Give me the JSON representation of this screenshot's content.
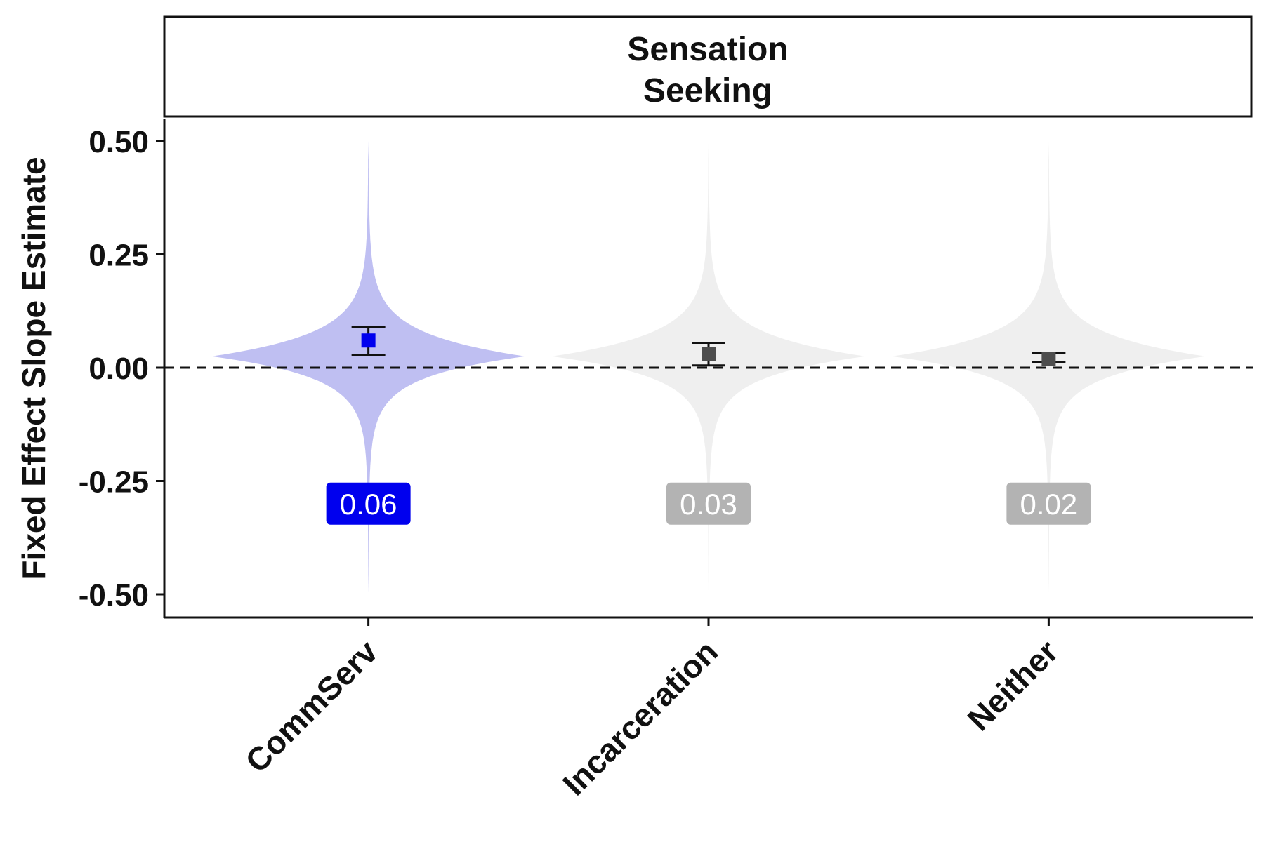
{
  "chart_data": {
    "type": "violin",
    "facet_title": [
      "Sensation",
      "Seeking"
    ],
    "ylabel": "Fixed Effect Slope Estimate",
    "xlabel": "",
    "ylim": [
      -0.55,
      0.55
    ],
    "yticks": [
      0.5,
      0.25,
      0.0,
      -0.25,
      -0.5
    ],
    "ytick_labels": [
      "0.50",
      "0.25",
      "0.00",
      "-0.25",
      "-0.50"
    ],
    "reference_line": 0.0,
    "categories": [
      "CommServ",
      "Incarceration",
      "Neither"
    ],
    "violin_range": [
      -0.5,
      0.5
    ],
    "violin_mode": 0.025,
    "estimates": [
      0.06,
      0.03,
      0.02
    ],
    "ci_lower": [
      0.027,
      0.005,
      0.013
    ],
    "ci_upper": [
      0.09,
      0.055,
      0.033
    ],
    "value_labels": [
      "0.06",
      "0.03",
      "0.02"
    ],
    "value_label_y": -0.3,
    "highlight": [
      true,
      false,
      false
    ],
    "colors": {
      "highlight_violin": "#bfbff2",
      "highlight_point": "#0000ee",
      "highlight_label": "#0000ee",
      "muted_violin": "#efefef",
      "muted_point": "#4d4d4d",
      "muted_label": "#b3b3b3",
      "errorbar": "#111111",
      "reference_line": "#111111"
    }
  }
}
